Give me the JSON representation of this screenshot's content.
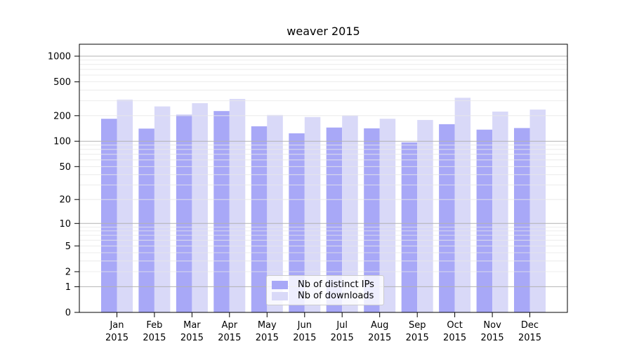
{
  "chart_data": {
    "type": "bar",
    "title": "weaver 2015",
    "categories": [
      "Jan",
      "Feb",
      "Mar",
      "Apr",
      "May",
      "Jun",
      "Jul",
      "Aug",
      "Sep",
      "Oct",
      "Nov",
      "Dec"
    ],
    "year": "2015",
    "series": [
      {
        "name": "Nb of distinct IPs",
        "color": "#a8a8f7",
        "values": [
          184,
          141,
          205,
          227,
          150,
          124,
          145,
          142,
          97,
          159,
          137,
          143
        ]
      },
      {
        "name": "Nb of downloads",
        "color": "#d9d9f8",
        "values": [
          309,
          257,
          281,
          315,
          204,
          193,
          202,
          184,
          178,
          325,
          224,
          236
        ]
      }
    ],
    "xlabel": "",
    "ylabel": "",
    "yscale": "log1p",
    "ylim": [
      0,
      1380
    ],
    "yticks": [
      0,
      1,
      2,
      5,
      10,
      20,
      50,
      100,
      200,
      500,
      1000
    ],
    "grid": {
      "major_lines": [
        1,
        10,
        100,
        1000
      ],
      "minor_decade_bases": [
        1,
        10,
        100
      ]
    },
    "legend_position": "lower center"
  },
  "colors": {
    "grid_major": "#b2b2b2",
    "grid_minor": "#e7e7e7",
    "spine": "#000000",
    "tick_text": "#000000",
    "legend_border": "#cccccc"
  }
}
